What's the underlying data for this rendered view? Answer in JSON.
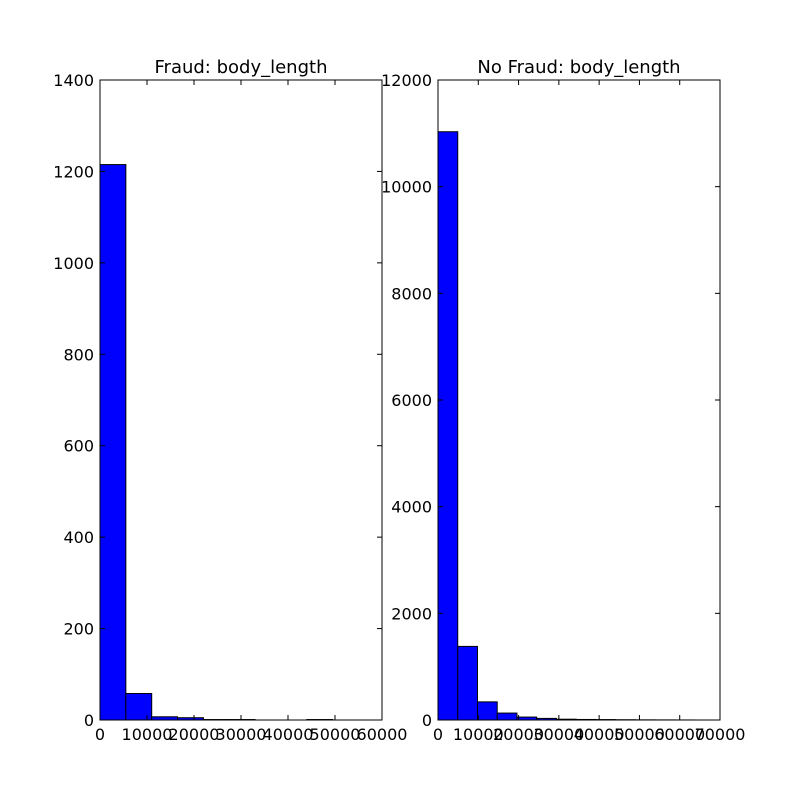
{
  "chart_data": [
    {
      "type": "bar",
      "title": "Fraud: body_length",
      "xlim": [
        0,
        60000
      ],
      "ylim": [
        0,
        1400
      ],
      "xticks": [
        0,
        10000,
        20000,
        30000,
        40000,
        50000,
        60000
      ],
      "yticks": [
        0,
        200,
        400,
        600,
        800,
        1000,
        1200,
        1400
      ],
      "bin_edges": [
        0,
        5500,
        11000,
        16500,
        22000,
        27500,
        33000,
        38500,
        44000,
        49500,
        55000
      ],
      "values": [
        1215,
        58,
        7,
        5,
        1,
        1,
        0,
        0,
        1,
        0
      ],
      "color": "#0000ff",
      "grid": false
    },
    {
      "type": "bar",
      "title": "No Fraud: body_length",
      "xlim": [
        0,
        70000
      ],
      "ylim": [
        0,
        12000
      ],
      "xticks": [
        0,
        10000,
        20000,
        30000,
        40000,
        50000,
        60000,
        70000
      ],
      "yticks": [
        0,
        2000,
        4000,
        6000,
        8000,
        10000,
        12000
      ],
      "bin_edges": [
        0,
        4900,
        9800,
        14700,
        19600,
        24500,
        29400,
        34300,
        39200,
        44100,
        49000,
        53900,
        58800,
        63700
      ],
      "values": [
        11030,
        1380,
        340,
        130,
        55,
        30,
        15,
        10,
        8,
        5,
        3,
        2,
        1
      ],
      "color": "#0000ff",
      "grid": false
    }
  ]
}
